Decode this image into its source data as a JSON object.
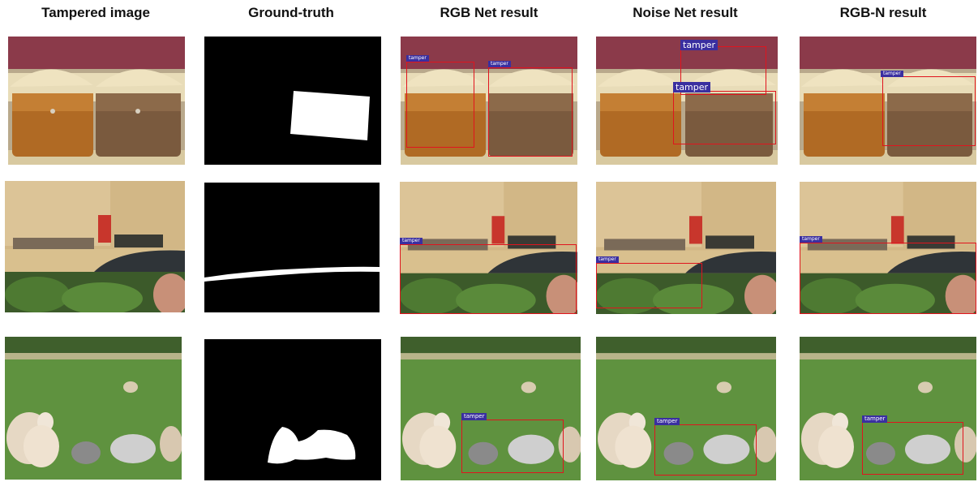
{
  "columns": [
    {
      "title": "Tampered image"
    },
    {
      "title": "Ground-truth"
    },
    {
      "title": "RGB Net result"
    },
    {
      "title": "Noise Net result"
    },
    {
      "title": "RGB-N result"
    }
  ],
  "detection_label": "tamper",
  "colors": {
    "box": "#e0141e",
    "label_bg": "#3a2fa0",
    "mask_background": "#000000",
    "mask_foreground": "#ffffff"
  }
}
